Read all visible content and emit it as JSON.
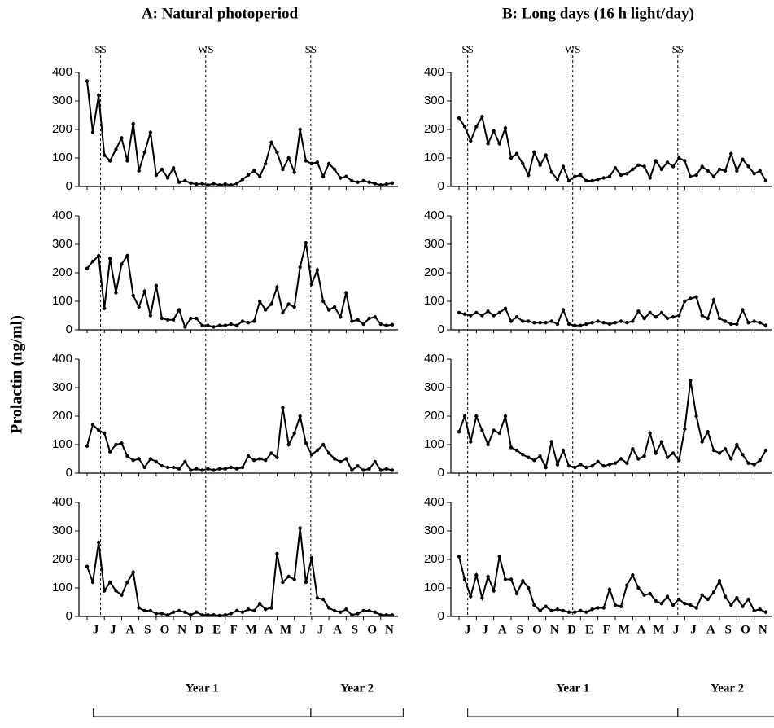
{
  "ylabel": "Prolactin (ng/ml)",
  "chart_data": [
    {
      "type": "line",
      "title": "A: Natural photoperiod",
      "color": "#000000",
      "categories": [
        "J",
        "J",
        "A",
        "S",
        "O",
        "N",
        "D",
        "E",
        "F",
        "M",
        "A",
        "M",
        "J",
        "J",
        "A",
        "S",
        "O",
        "N"
      ],
      "x": [
        0,
        0.33,
        0.67,
        1,
        1.33,
        1.67,
        2,
        2.33,
        2.67,
        3,
        3.33,
        3.67,
        4,
        4.33,
        4.67,
        5,
        5.33,
        5.67,
        6,
        6.33,
        6.67,
        7,
        7.33,
        7.67,
        8,
        8.33,
        8.67,
        9,
        9.33,
        9.67,
        10,
        10.33,
        10.67,
        11,
        11.33,
        11.67,
        12,
        12.33,
        12.67,
        13,
        13.33,
        13.67,
        14,
        14.33,
        14.67,
        15,
        15.33,
        15.67,
        16,
        16.33,
        16.67,
        17,
        17.33,
        17.67
      ],
      "xlim": [
        0,
        18
      ],
      "ylim": [
        0,
        400
      ],
      "yticks": [
        0,
        100,
        200,
        300,
        400
      ],
      "seasons": [
        {
          "label": "SS",
          "x": 0.78
        },
        {
          "label": "WS",
          "x": 6.87
        },
        {
          "label": "SS",
          "x": 12.95
        }
      ],
      "years": [
        {
          "label": "Year 1",
          "range": [
            0.36,
            12.95
          ]
        },
        {
          "label": "Year 2",
          "range": [
            12.95,
            18.3
          ]
        }
      ],
      "panels": [
        {
          "values": [
            370,
            190,
            320,
            110,
            90,
            130,
            170,
            90,
            220,
            55,
            120,
            190,
            40,
            60,
            30,
            65,
            15,
            20,
            12,
            8,
            10,
            5,
            10,
            5,
            8,
            5,
            10,
            25,
            40,
            55,
            35,
            80,
            155,
            120,
            60,
            100,
            50,
            200,
            90,
            80,
            85,
            35,
            80,
            60,
            30,
            35,
            20,
            15,
            20,
            15,
            10,
            5,
            8,
            12
          ]
        },
        {
          "values": [
            215,
            240,
            260,
            75,
            250,
            130,
            230,
            260,
            120,
            80,
            135,
            50,
            155,
            40,
            35,
            35,
            70,
            10,
            40,
            40,
            15,
            15,
            10,
            15,
            15,
            20,
            15,
            30,
            25,
            30,
            100,
            70,
            90,
            150,
            60,
            90,
            80,
            220,
            305,
            160,
            210,
            100,
            70,
            80,
            45,
            130,
            30,
            35,
            20,
            40,
            45,
            20,
            15,
            18
          ]
        },
        {
          "values": [
            95,
            170,
            150,
            140,
            75,
            100,
            105,
            60,
            45,
            50,
            20,
            50,
            40,
            25,
            20,
            20,
            15,
            40,
            10,
            15,
            10,
            15,
            10,
            15,
            15,
            20,
            15,
            20,
            60,
            45,
            50,
            45,
            70,
            55,
            230,
            100,
            140,
            200,
            105,
            65,
            80,
            100,
            70,
            50,
            40,
            50,
            10,
            25,
            10,
            15,
            40,
            10,
            15,
            10
          ]
        },
        {
          "values": [
            175,
            120,
            260,
            90,
            120,
            90,
            75,
            120,
            155,
            30,
            20,
            20,
            10,
            10,
            5,
            15,
            20,
            15,
            5,
            15,
            5,
            5,
            5,
            3,
            5,
            10,
            20,
            15,
            25,
            20,
            45,
            25,
            30,
            220,
            120,
            140,
            130,
            310,
            120,
            205,
            65,
            60,
            30,
            20,
            15,
            25,
            5,
            10,
            20,
            20,
            15,
            5,
            5,
            5
          ]
        }
      ]
    },
    {
      "type": "line",
      "title": "B: Long days (16 h light/day)",
      "color": "#000000",
      "categories": [
        "J",
        "J",
        "A",
        "S",
        "O",
        "N",
        "D",
        "E",
        "F",
        "M",
        "A",
        "M",
        "J",
        "J",
        "A",
        "S",
        "O",
        "N"
      ],
      "x": [
        0,
        0.33,
        0.67,
        1,
        1.33,
        1.67,
        2,
        2.33,
        2.67,
        3,
        3.33,
        3.67,
        4,
        4.33,
        4.67,
        5,
        5.33,
        5.67,
        6,
        6.33,
        6.67,
        7,
        7.33,
        7.67,
        8,
        8.33,
        8.67,
        9,
        9.33,
        9.67,
        10,
        10.33,
        10.67,
        11,
        11.33,
        11.67,
        12,
        12.33,
        12.67,
        13,
        13.33,
        13.67,
        14,
        14.33,
        14.67,
        15,
        15.33,
        15.67,
        16,
        16.33,
        16.67,
        17,
        17.33,
        17.67
      ],
      "xlim": [
        0,
        18
      ],
      "ylim": [
        0,
        400
      ],
      "yticks": [
        0,
        100,
        200,
        300,
        400
      ],
      "seasons": [
        {
          "label": "SS",
          "x": 0.5
        },
        {
          "label": "WS",
          "x": 6.55
        },
        {
          "label": "SS",
          "x": 12.6
        }
      ],
      "years": [
        {
          "label": "Year 1",
          "range": [
            0.5,
            12.6
          ]
        },
        {
          "label": "Year 2",
          "range": [
            12.6,
            18.3
          ]
        }
      ],
      "panels": [
        {
          "values": [
            240,
            210,
            160,
            210,
            245,
            150,
            195,
            150,
            205,
            100,
            115,
            80,
            40,
            120,
            75,
            110,
            50,
            25,
            70,
            20,
            35,
            40,
            20,
            20,
            25,
            30,
            35,
            65,
            40,
            45,
            60,
            75,
            70,
            30,
            90,
            60,
            85,
            70,
            100,
            90,
            35,
            40,
            70,
            55,
            35,
            60,
            55,
            115,
            55,
            95,
            70,
            45,
            55,
            20
          ]
        },
        {
          "values": [
            60,
            55,
            50,
            60,
            50,
            65,
            50,
            60,
            75,
            30,
            45,
            30,
            30,
            25,
            25,
            25,
            30,
            20,
            70,
            20,
            15,
            15,
            20,
            25,
            30,
            25,
            20,
            25,
            30,
            25,
            30,
            65,
            40,
            60,
            45,
            60,
            40,
            45,
            50,
            100,
            110,
            115,
            50,
            40,
            105,
            40,
            30,
            20,
            20,
            70,
            25,
            30,
            25,
            15
          ]
        },
        {
          "values": [
            145,
            200,
            110,
            200,
            150,
            100,
            150,
            140,
            200,
            90,
            80,
            65,
            55,
            45,
            60,
            20,
            110,
            30,
            80,
            25,
            20,
            30,
            20,
            25,
            40,
            25,
            30,
            35,
            50,
            35,
            85,
            50,
            60,
            140,
            70,
            110,
            55,
            70,
            45,
            155,
            325,
            200,
            110,
            145,
            80,
            70,
            85,
            50,
            100,
            65,
            35,
            30,
            45,
            80
          ]
        },
        {
          "values": [
            210,
            130,
            70,
            145,
            65,
            140,
            90,
            210,
            130,
            130,
            80,
            125,
            100,
            40,
            20,
            35,
            20,
            25,
            20,
            15,
            15,
            20,
            15,
            25,
            30,
            30,
            95,
            40,
            35,
            110,
            145,
            100,
            75,
            80,
            55,
            45,
            70,
            40,
            60,
            45,
            40,
            30,
            75,
            60,
            85,
            125,
            70,
            40,
            65,
            35,
            60,
            20,
            25,
            15
          ]
        }
      ]
    }
  ]
}
